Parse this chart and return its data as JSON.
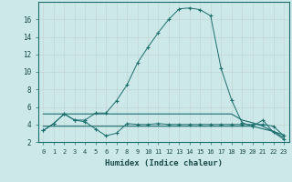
{
  "xlabel": "Humidex (Indice chaleur)",
  "ylabel": "",
  "background_color": "#cce8e8",
  "grid_color": "#b8d8d8",
  "line_color": "#1a6e6e",
  "xlim": [
    -0.5,
    23.5
  ],
  "ylim": [
    2,
    18
  ],
  "xticks": [
    0,
    1,
    2,
    3,
    4,
    5,
    6,
    7,
    8,
    9,
    10,
    11,
    12,
    13,
    14,
    15,
    16,
    17,
    18,
    19,
    20,
    21,
    22,
    23
  ],
  "yticks": [
    2,
    4,
    6,
    8,
    10,
    12,
    14,
    16
  ],
  "series1_x": [
    0,
    1,
    2,
    3,
    4,
    5,
    6,
    7,
    8,
    9,
    10,
    11,
    12,
    13,
    14,
    15,
    16,
    17,
    18,
    19,
    20,
    21,
    22,
    23
  ],
  "series1_y": [
    3.3,
    4.1,
    5.2,
    4.5,
    4.3,
    3.5,
    2.7,
    3.0,
    4.1,
    4.0,
    4.0,
    4.1,
    4.0,
    4.0,
    4.0,
    4.0,
    4.0,
    4.0,
    4.0,
    4.0,
    4.0,
    4.0,
    3.8,
    2.7
  ],
  "series2_x": [
    0,
    1,
    2,
    3,
    4,
    5,
    6,
    7,
    8,
    9,
    10,
    11,
    12,
    13,
    14,
    15,
    16,
    17,
    18,
    19,
    20,
    21,
    22,
    23
  ],
  "series2_y": [
    3.3,
    4.1,
    5.2,
    4.5,
    4.5,
    5.3,
    5.3,
    6.7,
    8.5,
    11.0,
    12.8,
    14.5,
    16.0,
    17.2,
    17.3,
    17.1,
    16.4,
    10.4,
    6.8,
    4.2,
    3.8,
    4.5,
    3.1,
    2.3
  ],
  "series3_x": [
    0,
    1,
    2,
    3,
    4,
    5,
    6,
    7,
    8,
    9,
    10,
    11,
    12,
    13,
    14,
    15,
    16,
    17,
    18,
    19,
    20,
    21,
    22,
    23
  ],
  "series3_y": [
    5.2,
    5.2,
    5.2,
    5.2,
    5.2,
    5.2,
    5.2,
    5.2,
    5.2,
    5.2,
    5.2,
    5.2,
    5.2,
    5.2,
    5.2,
    5.2,
    5.2,
    5.2,
    5.2,
    4.5,
    4.2,
    3.8,
    3.2,
    2.5
  ],
  "series4_x": [
    0,
    1,
    2,
    3,
    4,
    5,
    6,
    7,
    8,
    9,
    10,
    11,
    12,
    13,
    14,
    15,
    16,
    17,
    18,
    19,
    20,
    21,
    22,
    23
  ],
  "series4_y": [
    3.8,
    3.8,
    3.8,
    3.8,
    3.8,
    3.8,
    3.8,
    3.8,
    3.8,
    3.8,
    3.8,
    3.8,
    3.8,
    3.8,
    3.8,
    3.8,
    3.8,
    3.8,
    3.8,
    3.8,
    3.8,
    3.5,
    3.2,
    2.8
  ]
}
